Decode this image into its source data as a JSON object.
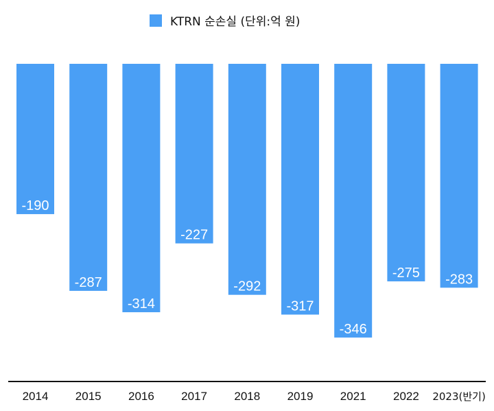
{
  "chart_data": {
    "type": "bar",
    "title": "",
    "legend": [
      "KTRN 순손실 (단위:억 원)"
    ],
    "legend_placement": "top-center",
    "categories": [
      "2014",
      "2015",
      "2016",
      "2017",
      "2018",
      "2019",
      "2021",
      "2022",
      "2023(반기)"
    ],
    "values": [
      -190,
      -287,
      -314,
      -227,
      -292,
      -317,
      -346,
      -275,
      -283
    ],
    "value_labels": [
      "-190",
      "-287",
      "-314",
      "-227",
      "-292",
      "-317",
      "-346",
      "-275",
      "-283"
    ],
    "xlabel": "",
    "ylabel": "",
    "ylim": [
      -400,
      0
    ],
    "grid": false,
    "color": "#4A9FF5"
  }
}
